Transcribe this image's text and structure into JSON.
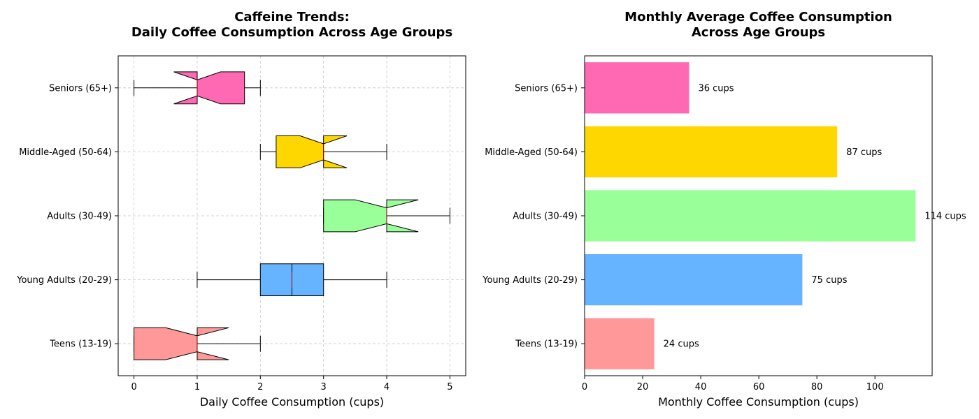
{
  "chart_data": [
    {
      "type": "box",
      "orientation": "horizontal",
      "notched": true,
      "title_line1": "Caffeine Trends:",
      "title_line2": "Daily Coffee Consumption Across Age Groups",
      "xlabel": "Daily Coffee Consumption (cups)",
      "ylabel": "",
      "xlim": [
        -0.25,
        5.25
      ],
      "xticks": [
        "0",
        "1",
        "2",
        "3",
        "4",
        "5"
      ],
      "grid": true,
      "categories": [
        "Teens (13-19)",
        "Young Adults (20-29)",
        "Adults (30-49)",
        "Middle-Aged (50-64)",
        "Seniors (65+)"
      ],
      "colors": [
        "#FF9999",
        "#66B3FF",
        "#99FF99",
        "#FFD700",
        "#FF69B4"
      ],
      "boxes": [
        {
          "whisker_low": 0,
          "q1": 0,
          "median": 1,
          "q3": 1,
          "whisker_high": 2,
          "notch_low": 0.5,
          "notch_high": 1.5
        },
        {
          "whisker_low": 1,
          "q1": 2,
          "median": 2.5,
          "q3": 3,
          "whisker_high": 4,
          "notch_low": 2.5,
          "notch_high": 2.5
        },
        {
          "whisker_low": 3,
          "q1": 3,
          "median": 4,
          "q3": 4,
          "whisker_high": 5,
          "notch_low": 3.5,
          "notch_high": 4.5
        },
        {
          "whisker_low": 2,
          "q1": 2.25,
          "median": 3,
          "q3": 3,
          "whisker_high": 4,
          "notch_low": 2.63,
          "notch_high": 3.37
        },
        {
          "whisker_low": 0,
          "q1": 1,
          "median": 1,
          "q3": 1.75,
          "whisker_high": 2,
          "notch_low": 0.63,
          "notch_high": 1.37
        }
      ]
    },
    {
      "type": "bar",
      "orientation": "horizontal",
      "title_line1": "Monthly Average Coffee Consumption",
      "title_line2": "Across Age Groups",
      "xlabel": "Monthly Coffee Consumption (cups)",
      "ylabel": "",
      "xlim": [
        0,
        119.7
      ],
      "xticks": [
        "0",
        "20",
        "40",
        "60",
        "80",
        "100"
      ],
      "grid": false,
      "categories": [
        "Teens (13-19)",
        "Young Adults (20-29)",
        "Adults (30-49)",
        "Middle-Aged (50-64)",
        "Seniors (65+)"
      ],
      "values": [
        24,
        75,
        114,
        87,
        36
      ],
      "data_labels": [
        "24 cups",
        "75 cups",
        "114 cups",
        "87 cups",
        "36 cups"
      ],
      "colors": [
        "#FF9999",
        "#66B3FF",
        "#99FF99",
        "#FFD700",
        "#FF69B4"
      ]
    }
  ]
}
